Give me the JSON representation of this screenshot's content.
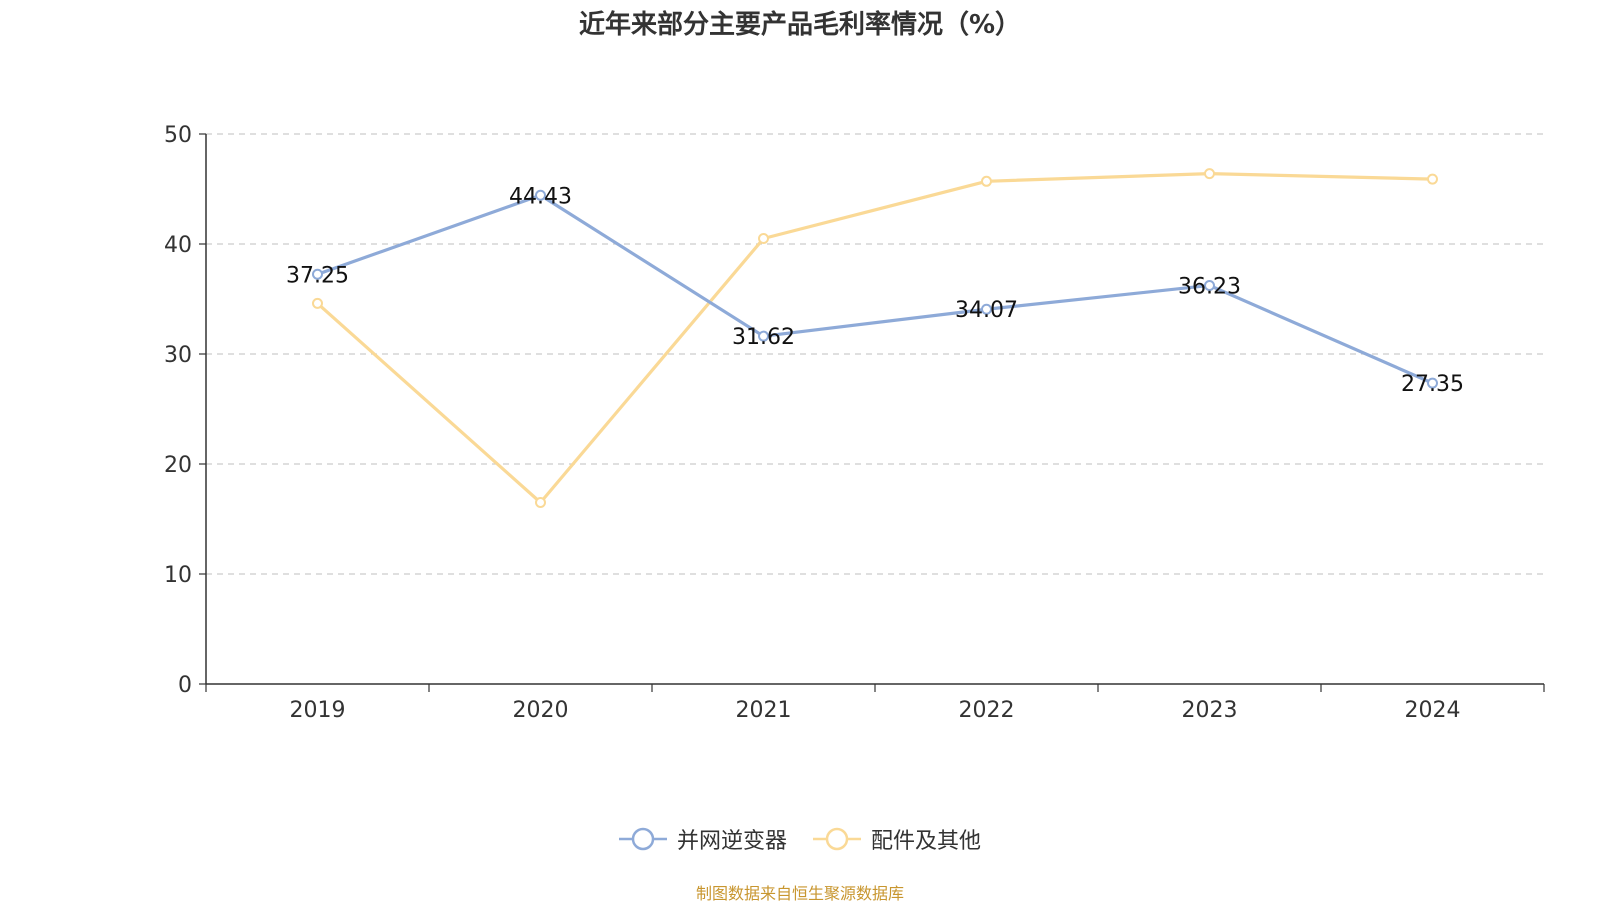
{
  "chart_data": {
    "type": "line",
    "title": "近年来部分主要产品毛利率情况（%）",
    "categories": [
      "2019",
      "2020",
      "2021",
      "2022",
      "2023",
      "2024"
    ],
    "yticks": [
      "0",
      "10",
      "20",
      "30",
      "40",
      "50"
    ],
    "ylim": [
      0,
      50
    ],
    "grid": true,
    "legend_position": "bottom-center",
    "series": [
      {
        "name": "并网逆变器",
        "color": "#8eaad8",
        "values": [
          37.25,
          44.43,
          31.62,
          34.07,
          36.23,
          27.35
        ],
        "labels": [
          "37.25",
          "44.43",
          "31.62",
          "34.07",
          "36.23",
          "27.35"
        ],
        "show_labels": true
      },
      {
        "name": "配件及其他",
        "color": "#fad996",
        "values": [
          34.6,
          16.5,
          40.5,
          45.7,
          46.4,
          45.9
        ],
        "show_labels": false
      }
    ]
  },
  "source_note": "制图数据来自恒生聚源数据库"
}
